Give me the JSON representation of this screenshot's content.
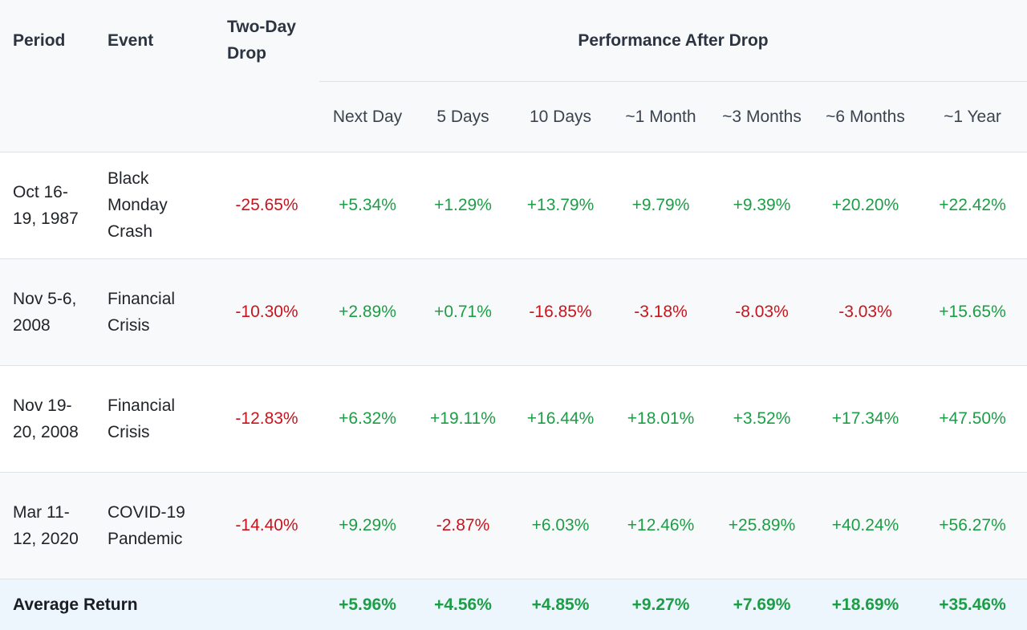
{
  "header": {
    "period": "Period",
    "event": "Event",
    "drop": "Two-Day Drop",
    "performance": "Performance After Drop",
    "subcolumns": [
      "Next Day",
      "5 Days",
      "10 Days",
      "~1 Month",
      "~3 Months",
      "~6 Months",
      "~1 Year"
    ]
  },
  "rows": [
    {
      "period": "Oct 16-19, 1987",
      "event": "Black Monday Crash",
      "drop": "-25.65%",
      "values": [
        "+5.34%",
        "+1.29%",
        "+13.79%",
        "+9.79%",
        "+9.39%",
        "+20.20%",
        "+22.42%"
      ]
    },
    {
      "period": "Nov 5-6, 2008",
      "event": "Financial Crisis",
      "drop": "-10.30%",
      "values": [
        "+2.89%",
        "+0.71%",
        "-16.85%",
        "-3.18%",
        "-8.03%",
        "-3.03%",
        "+15.65%"
      ]
    },
    {
      "period": "Nov 19-20, 2008",
      "event": "Financial Crisis",
      "drop": "-12.83%",
      "values": [
        "+6.32%",
        "+19.11%",
        "+16.44%",
        "+18.01%",
        "+3.52%",
        "+17.34%",
        "+47.50%"
      ]
    },
    {
      "period": "Mar 11-12, 2020",
      "event": "COVID-19 Pandemic",
      "drop": "-14.40%",
      "values": [
        "+9.29%",
        "-2.87%",
        "+6.03%",
        "+12.46%",
        "+25.89%",
        "+40.24%",
        "+56.27%"
      ]
    }
  ],
  "average": {
    "label": "Average Return",
    "values": [
      "+5.96%",
      "+4.56%",
      "+4.85%",
      "+9.27%",
      "+7.69%",
      "+18.69%",
      "+35.46%"
    ]
  },
  "colors": {
    "positive": "#1c9e46",
    "negative": "#c8151d",
    "header_bg": "#f8f9fa",
    "average_bg": "#eef6fd"
  }
}
